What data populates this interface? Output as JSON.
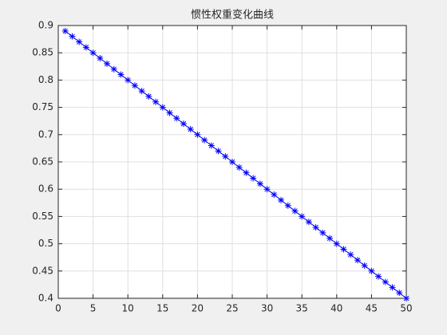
{
  "chart_data": {
    "type": "line",
    "title": "惯性权重变化曲线",
    "x": [
      1,
      2,
      3,
      4,
      5,
      6,
      7,
      8,
      9,
      10,
      11,
      12,
      13,
      14,
      15,
      16,
      17,
      18,
      19,
      20,
      21,
      22,
      23,
      24,
      25,
      26,
      27,
      28,
      29,
      30,
      31,
      32,
      33,
      34,
      35,
      36,
      37,
      38,
      39,
      40,
      41,
      42,
      43,
      44,
      45,
      46,
      47,
      48,
      49,
      50
    ],
    "series": [
      {
        "color": "#0000ff",
        "marker": "*",
        "values": [
          0.89,
          0.88,
          0.87,
          0.86,
          0.85,
          0.84,
          0.83,
          0.82,
          0.81,
          0.8,
          0.79,
          0.78,
          0.77,
          0.76,
          0.75,
          0.74,
          0.73,
          0.72,
          0.71,
          0.7,
          0.69,
          0.68,
          0.67,
          0.66,
          0.65,
          0.64,
          0.63,
          0.62,
          0.61,
          0.6,
          0.59,
          0.58,
          0.57,
          0.56,
          0.55,
          0.54,
          0.53,
          0.52,
          0.51,
          0.5,
          0.49,
          0.48,
          0.47,
          0.46,
          0.45,
          0.44,
          0.43,
          0.42,
          0.41,
          0.4
        ]
      }
    ],
    "xlim": [
      0,
      50
    ],
    "xticks": [
      0,
      5,
      10,
      15,
      20,
      25,
      30,
      35,
      40,
      45,
      50
    ],
    "ylim": [
      0.4,
      0.9
    ],
    "yticks": [
      0.4,
      0.45,
      0.5,
      0.55,
      0.6,
      0.65,
      0.7,
      0.75,
      0.8,
      0.85,
      0.9
    ],
    "grid": true
  }
}
